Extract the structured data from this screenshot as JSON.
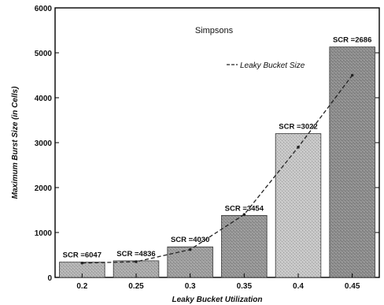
{
  "chart_data": {
    "type": "bar",
    "title": "Simpsons",
    "xlabel": "Leaky Bucket Utilization",
    "ylabel": "Maximum Burst Size (in Cells)",
    "categories": [
      "0.2",
      "0.25",
      "0.3",
      "0.35",
      "0.4",
      "0.45"
    ],
    "values": [
      340,
      370,
      680,
      1380,
      3200,
      5130
    ],
    "bar_labels": [
      "SCR =6047",
      "SCR =4836",
      "SCR =4030",
      "SCR =3454",
      "SCR =3022",
      "SCR =2686"
    ],
    "ylim": [
      0,
      6000
    ],
    "yticks": [
      "0",
      "1000",
      "2000",
      "3000",
      "4000",
      "5000",
      "6000"
    ],
    "grid": false,
    "legend": {
      "placement": "top-right",
      "entries": [
        "Leaky Bucket Size"
      ]
    },
    "trend_line": {
      "name": "Leaky Bucket Size",
      "style": "dashed",
      "values": [
        320,
        350,
        620,
        1400,
        2900,
        4500
      ]
    },
    "colors": {
      "bars": [
        "#b3b3b3",
        "#aaaaaa",
        "#9e9e9e",
        "#959595",
        "#c6c6c6",
        "#8c8c8c"
      ],
      "line": "#222222"
    }
  }
}
